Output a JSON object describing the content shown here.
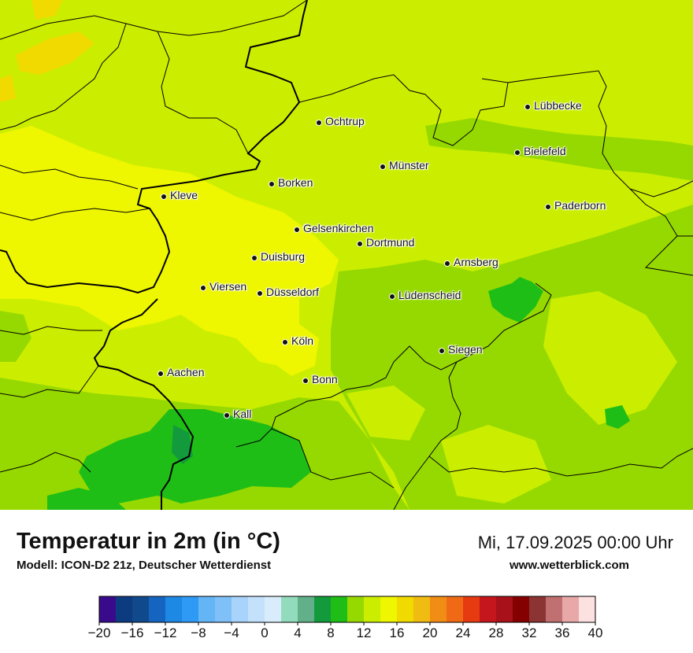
{
  "map": {
    "title": "Temperatur in 2m (in °C)",
    "model_info": "Modell: ICON-D2 21z, Deutscher Wetterdienst",
    "valid_time": "Mi, 17.09.2025 00:00 Uhr",
    "website": "www.wetterblick.com"
  },
  "cities": [
    {
      "name": "Lübbecke"
    },
    {
      "name": "Ochtrup"
    },
    {
      "name": "Bielefeld"
    },
    {
      "name": "Münster"
    },
    {
      "name": "Borken"
    },
    {
      "name": "Kleve"
    },
    {
      "name": "Paderborn"
    },
    {
      "name": "Gelsenkirchen"
    },
    {
      "name": "Dortmund"
    },
    {
      "name": "Duisburg"
    },
    {
      "name": "Arnsberg"
    },
    {
      "name": "Viersen"
    },
    {
      "name": "Düsseldorf"
    },
    {
      "name": "Lüdenscheid"
    },
    {
      "name": "Köln"
    },
    {
      "name": "Siegen"
    },
    {
      "name": "Aachen"
    },
    {
      "name": "Bonn"
    },
    {
      "name": "Kall"
    }
  ],
  "legend": {
    "unit": "°C",
    "colors": [
      "#3a0a8c",
      "#0d3b80",
      "#104a8c",
      "#1565c0",
      "#1e88e5",
      "#2f9af5",
      "#64b5f6",
      "#7fc0f8",
      "#a8d3fa",
      "#c4e1fb",
      "#d8ecfc",
      "#93dbbd",
      "#62b08a",
      "#139a3c",
      "#1fbe17",
      "#96d900",
      "#cbee00",
      "#eef600",
      "#f0da00",
      "#f0bc12",
      "#f18c15",
      "#f06a15",
      "#e63a10",
      "#c4161c",
      "#a8101a",
      "#850000",
      "#8c3333",
      "#c07070",
      "#e8a8a8",
      "#fde0e0"
    ],
    "tick_labels": [
      "−20",
      "−16",
      "−12",
      "−8",
      "−4",
      "0",
      "4",
      "8",
      "12",
      "16",
      "20",
      "24",
      "28",
      "32",
      "36",
      "40"
    ]
  }
}
